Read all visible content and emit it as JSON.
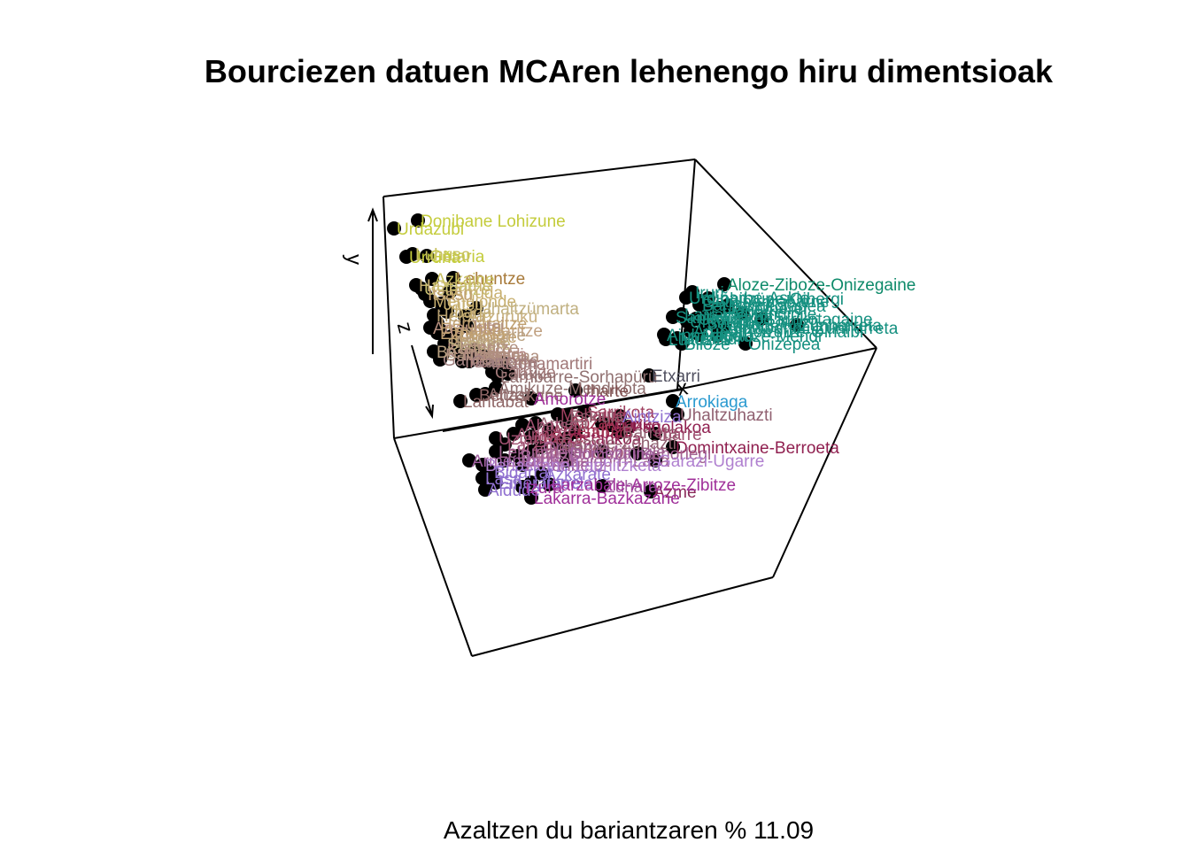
{
  "chart_data": {
    "type": "scatter",
    "title": "Bourciezen datuen MCAren lehenengo hiru dimentsioak",
    "caption": "Azaltzen du bariantzaren % 11.09",
    "axes": [
      "x",
      "y",
      "z"
    ],
    "labels": [
      {
        "text": "Donibane Lohizune",
        "color": "#C4CC3C"
      },
      {
        "text": "Urdazubi",
        "color": "#C4CC3C"
      },
      {
        "text": "Getaria",
        "color": "#C4CC3C"
      },
      {
        "text": "Lehuntze",
        "color": "#A87A3A"
      },
      {
        "text": "Hazparne",
        "color": "#C8B070"
      },
      {
        "text": "Mendionde",
        "color": "#C8B070"
      },
      {
        "text": "Heleta",
        "color": "#B8A070"
      },
      {
        "text": "Altzürükü",
        "color": "#C8B080"
      },
      {
        "text": "Lekuine",
        "color": "#C0A080"
      },
      {
        "text": "Armendaritze",
        "color": "#C0A080"
      },
      {
        "text": "Arrauntz",
        "color": "#B89080"
      },
      {
        "text": "Kanbo",
        "color": "#B89080"
      },
      {
        "text": "Lakarra",
        "color": "#B08080"
      },
      {
        "text": "Iholdi",
        "color": "#B08080"
      },
      {
        "text": "Garruze",
        "color": "#A08080"
      },
      {
        "text": "Irisarri",
        "color": "#A08080"
      },
      {
        "text": "Urruña",
        "color": "#C4CC3C"
      },
      {
        "text": "Azkaine",
        "color": "#C8C060"
      },
      {
        "text": "Jatsu",
        "color": "#C8B070"
      },
      {
        "text": "Ibarla",
        "color": "#C8B070"
      },
      {
        "text": "Hergaraitze",
        "color": "#C0A070"
      },
      {
        "text": "Bardoze",
        "color": "#C0A070"
      },
      {
        "text": "Bastida",
        "color": "#B8A080"
      },
      {
        "text": "Zaro",
        "color": "#B08880"
      },
      {
        "text": "Muskildi",
        "color": "#B08880"
      },
      {
        "text": "Ustaritze",
        "color": "#C8C070"
      },
      {
        "text": "Jutsi",
        "color": "#B09080"
      },
      {
        "text": "Uhaltzümarta",
        "color": "#C0B080"
      },
      {
        "text": "Senpere",
        "color": "#C0B080"
      },
      {
        "text": "Oragarre",
        "color": "#B8A080"
      },
      {
        "text": "Arbona",
        "color": "#B09080"
      },
      {
        "text": "Luhuso",
        "color": "#C8C060"
      },
      {
        "text": "Arruda",
        "color": "#C8B070"
      },
      {
        "text": "Ezpeleta",
        "color": "#C0A070"
      },
      {
        "text": "Itsasu",
        "color": "#C0A070"
      },
      {
        "text": "Makea",
        "color": "#B8A080"
      },
      {
        "text": "Baigorri",
        "color": "#B09080"
      },
      {
        "text": "Isturitze",
        "color": "#B09080"
      },
      {
        "text": "Ozaze",
        "color": "#B09080"
      },
      {
        "text": "Gamarte",
        "color": "#A08080"
      },
      {
        "text": "Donamartiri",
        "color": "#A07878"
      },
      {
        "text": "Garruze",
        "color": "#A07878"
      },
      {
        "text": "Jaxu",
        "color": "#A07878"
      },
      {
        "text": "Larribarre-Sorhapürü",
        "color": "#907070"
      },
      {
        "text": "Amikuze-Mendikota",
        "color": "#907070"
      },
      {
        "text": "Uharte",
        "color": "#805050"
      },
      {
        "text": "Altzai",
        "color": "#907070"
      },
      {
        "text": "Lantabat",
        "color": "#906868"
      },
      {
        "text": "Behaskane",
        "color": "#906868"
      },
      {
        "text": "Etxarri",
        "color": "#505060"
      },
      {
        "text": "Aloze-Ziboze-Onizegaine",
        "color": "#0E8A6A"
      },
      {
        "text": "Iruri",
        "color": "#159080"
      },
      {
        "text": "Lohitzüne-Oihergi",
        "color": "#159080"
      },
      {
        "text": "Gotaine-Irabarne",
        "color": "#159080"
      },
      {
        "text": "Sarrikotapea",
        "color": "#159080"
      },
      {
        "text": "Ligi-Atherei",
        "color": "#159080"
      },
      {
        "text": "Etxebarre",
        "color": "#159080"
      },
      {
        "text": "Larraine",
        "color": "#159080"
      },
      {
        "text": "Ürdiñarbe",
        "color": "#159080"
      },
      {
        "text": "Sohüta",
        "color": "#159080"
      },
      {
        "text": "Garindaine",
        "color": "#159080"
      },
      {
        "text": "Altzabeheti-Zunharreta",
        "color": "#159080"
      },
      {
        "text": "Mendibile",
        "color": "#159080"
      },
      {
        "text": "Barkoxe",
        "color": "#159080"
      },
      {
        "text": "Sarrikotagaine",
        "color": "#159080"
      },
      {
        "text": "Zunharreta",
        "color": "#159080"
      },
      {
        "text": "Santa Grazi",
        "color": "#159080"
      },
      {
        "text": "Urdiñarbe-Urrüzti",
        "color": "#159080"
      },
      {
        "text": "Ainharbe",
        "color": "#159080"
      },
      {
        "text": "Arüe-Ithorrotze-Olhaibi",
        "color": "#159080"
      },
      {
        "text": "Lükuze",
        "color": "#159080"
      },
      {
        "text": "Pagola",
        "color": "#159080"
      },
      {
        "text": "Idauze-Mendi",
        "color": "#159080"
      },
      {
        "text": "Muskildi",
        "color": "#159080"
      },
      {
        "text": "Biloze",
        "color": "#159080"
      },
      {
        "text": "Onizepea",
        "color": "#159080"
      },
      {
        "text": "Urdiñarbe-Askie",
        "color": "#159080"
      },
      {
        "text": "Arrokiaga",
        "color": "#2A9AD0"
      },
      {
        "text": "Mehaine",
        "color": "#A04060"
      },
      {
        "text": "Sarrikota",
        "color": "#A04060"
      },
      {
        "text": "Ahaxe",
        "color": "#A04060"
      },
      {
        "text": "Domintxaine-Berroeta",
        "color": "#902050"
      },
      {
        "text": "Abzako",
        "color": "#A03050"
      },
      {
        "text": "Gabadi",
        "color": "#A03050"
      },
      {
        "text": "Amenduze",
        "color": "#A03050"
      },
      {
        "text": "Ostankoa",
        "color": "#902050"
      },
      {
        "text": "Iruriko",
        "color": "#902050"
      },
      {
        "text": "Idauze",
        "color": "#A03050"
      },
      {
        "text": "Pagolakoa",
        "color": "#902050"
      },
      {
        "text": "Uhaltzuhazti",
        "color": "#906070"
      },
      {
        "text": "Eskiula",
        "color": "#906070"
      },
      {
        "text": "Arbeta",
        "color": "#906070"
      },
      {
        "text": "Barreta",
        "color": "#906070"
      },
      {
        "text": "Ahatsa",
        "color": "#A05070"
      },
      {
        "text": "Ainhize",
        "color": "#A05070"
      },
      {
        "text": "Uztaritze",
        "color": "#A05070"
      },
      {
        "text": "Larzabale",
        "color": "#A05070"
      },
      {
        "text": "Ezterentzubi",
        "color": "#A05070"
      },
      {
        "text": "Ibarre",
        "color": "#A05070"
      },
      {
        "text": "Lapitzketa",
        "color": "#B070A0"
      },
      {
        "text": "Bunuze",
        "color": "#B070A0"
      },
      {
        "text": "Ordiarpe",
        "color": "#A06090"
      },
      {
        "text": "Mithikile",
        "color": "#A06090"
      },
      {
        "text": "Baigorri-Lasa",
        "color": "#A06090"
      },
      {
        "text": "Behorlegi",
        "color": "#A06090"
      },
      {
        "text": "Lekumberri",
        "color": "#A06090"
      },
      {
        "text": "Haranbeltz",
        "color": "#A060A0"
      },
      {
        "text": "Domezaine",
        "color": "#A060A0"
      },
      {
        "text": "Armendarits",
        "color": "#A060A0"
      },
      {
        "text": "Garazi-Ugarre",
        "color": "#B080D0"
      },
      {
        "text": "Behaskane-Laphitzketa",
        "color": "#B080D0"
      },
      {
        "text": "Bidarrai",
        "color": "#9070D0"
      },
      {
        "text": "Lasa",
        "color": "#9070D0"
      },
      {
        "text": "Eiheralarre",
        "color": "#9070D0"
      },
      {
        "text": "Aldude",
        "color": "#9070D0"
      },
      {
        "text": "Azkarate",
        "color": "#9070D0"
      },
      {
        "text": "Urepele",
        "color": "#9070D0"
      },
      {
        "text": "Aintziza",
        "color": "#9070D0"
      },
      {
        "text": "Gamue-Zohazti",
        "color": "#906070"
      },
      {
        "text": "Zühara",
        "color": "#A060A0"
      },
      {
        "text": "Azme",
        "color": "#8A2A5A"
      },
      {
        "text": "Lakarra-Bazkazane",
        "color": "#A0309A"
      },
      {
        "text": "Larzabale-Arroze-Zibitze",
        "color": "#A0309A"
      },
      {
        "text": "Izura",
        "color": "#A0309A"
      },
      {
        "text": "Amorotze",
        "color": "#A0309A"
      }
    ]
  }
}
